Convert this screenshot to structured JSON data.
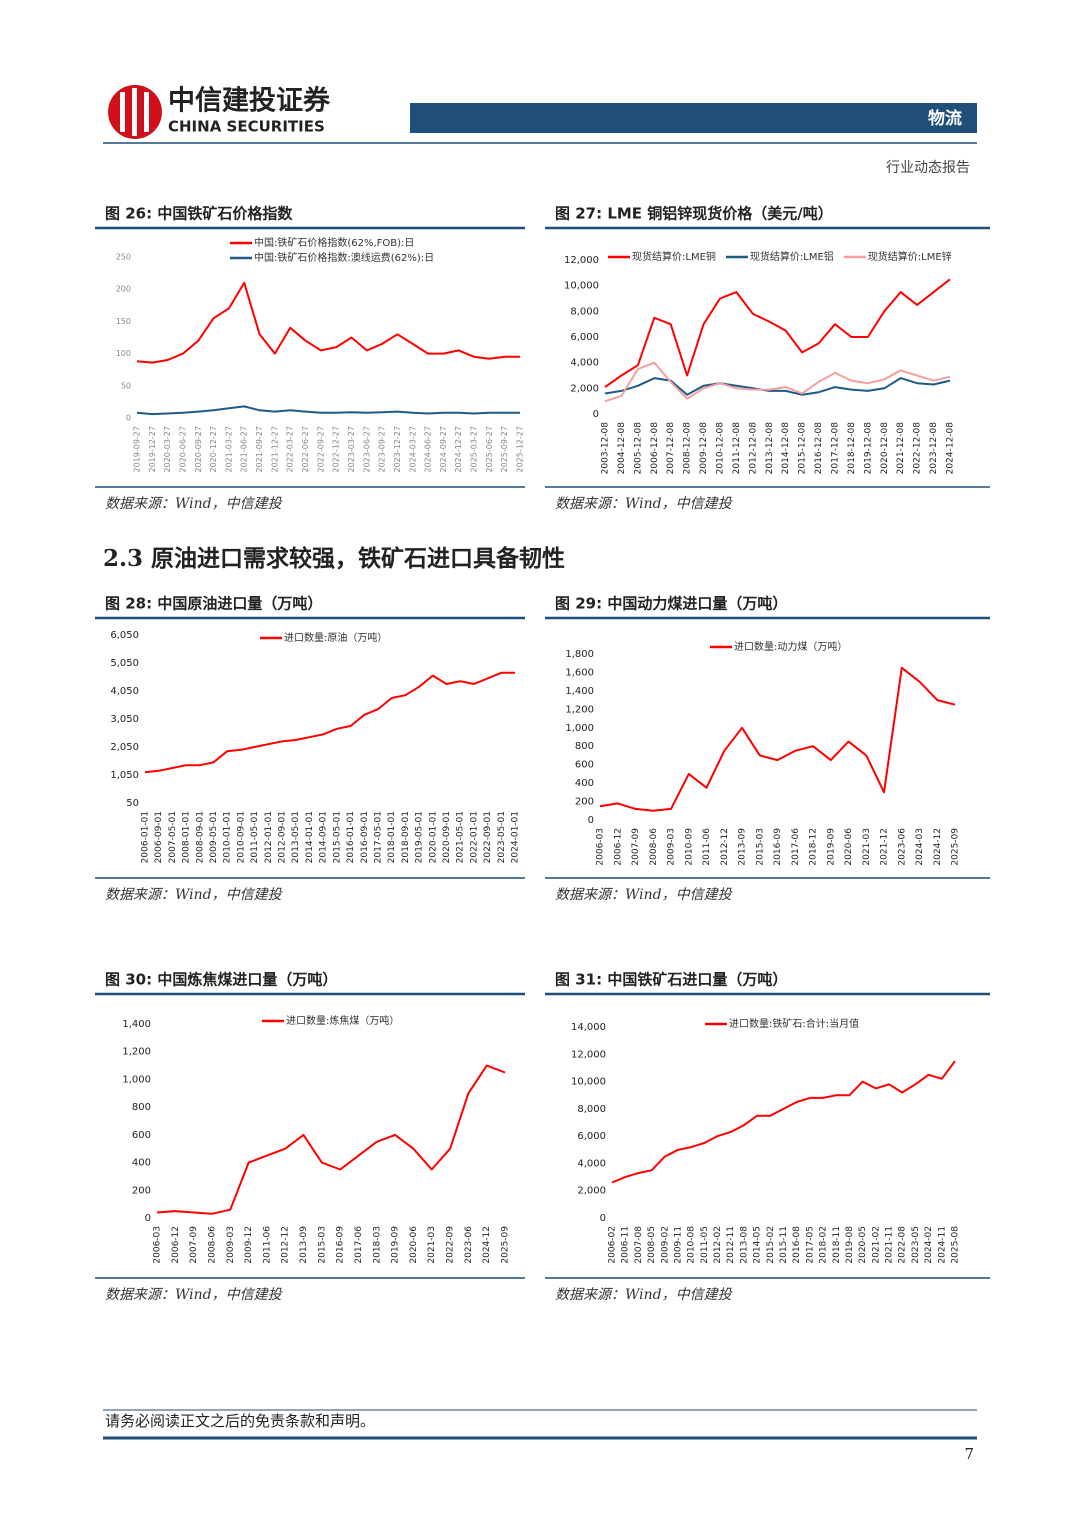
{
  "header": {
    "company": "中信建投证券",
    "company_en": "CHINA SECURITIES",
    "sector": "物流",
    "report_type": "行业动态报告"
  },
  "section_title": "2.3 原油进口需求较强，铁矿石进口具备韧性",
  "chart_data": [
    {
      "type": "line",
      "title": "图 26: 中国铁矿石价格指数",
      "source": "数据来源：Wind，中信建投",
      "categories": [
        "2019-09-27",
        "2019-12-27",
        "2020-03-27",
        "2020-06-27",
        "2020-09-27",
        "2020-12-27",
        "2021-03-27",
        "2021-06-27",
        "2021-09-27",
        "2021-12-27",
        "2022-03-27",
        "2022-06-27",
        "2022-09-27",
        "2022-12-27",
        "2023-03-27",
        "2023-06-27",
        "2023-09-27",
        "2023-12-27",
        "2024-03-27",
        "2024-06-27",
        "2024-09-27",
        "2024-12-27",
        "2025-03-27",
        "2025-06-27",
        "2025-09-27",
        "2025-12-27"
      ],
      "series": [
        {
          "name": "中国:铁矿石价格指数(62%,FOB):日",
          "color": "#ff0000",
          "values": [
            88,
            86,
            90,
            100,
            120,
            155,
            170,
            210,
            130,
            100,
            140,
            120,
            105,
            110,
            125,
            105,
            115,
            130,
            115,
            100,
            100,
            105,
            95,
            92,
            95,
            95
          ]
        },
        {
          "name": "中国:铁矿石价格指数:澳线运费(62%):日",
          "color": "#1f5a85",
          "values": [
            8,
            6,
            7,
            8,
            10,
            12,
            15,
            18,
            12,
            10,
            12,
            10,
            8,
            8,
            9,
            8,
            9,
            10,
            8,
            7,
            8,
            8,
            7,
            8,
            8,
            8
          ]
        }
      ],
      "ylim": [
        0,
        250
      ],
      "yticks": [
        0,
        50,
        100,
        150,
        200,
        250
      ]
    },
    {
      "type": "line",
      "title": "图 27: LME 铜铝锌现货价格（美元/吨）",
      "source": "数据来源：Wind，中信建投",
      "categories": [
        "2003-12-08",
        "2004-12-08",
        "2005-12-08",
        "2006-12-08",
        "2007-12-08",
        "2008-12-08",
        "2009-12-08",
        "2010-12-08",
        "2011-12-08",
        "2012-12-08",
        "2013-12-08",
        "2014-12-08",
        "2015-12-08",
        "2016-12-08",
        "2017-12-08",
        "2018-12-08",
        "2019-12-08",
        "2020-12-08",
        "2021-12-08",
        "2022-12-08",
        "2023-12-08",
        "2024-12-08"
      ],
      "series": [
        {
          "name": "现货结算价:LME铜",
          "color": "#ff0000",
          "values": [
            2100,
            3000,
            3800,
            7500,
            7000,
            3000,
            7000,
            9000,
            9500,
            7800,
            7200,
            6500,
            4800,
            5500,
            7000,
            6000,
            6000,
            8000,
            9500,
            8500,
            9500,
            10500
          ]
        },
        {
          "name": "现货结算价:LME铝",
          "color": "#1f5a85",
          "values": [
            1600,
            1800,
            2200,
            2800,
            2600,
            1500,
            2200,
            2400,
            2200,
            2000,
            1800,
            1800,
            1500,
            1700,
            2100,
            1900,
            1800,
            2000,
            2800,
            2400,
            2300,
            2600
          ]
        },
        {
          "name": "现货结算价:LME锌",
          "color": "#f4a0a0",
          "values": [
            1000,
            1400,
            3500,
            4000,
            2500,
            1200,
            2000,
            2400,
            2000,
            1900,
            1900,
            2100,
            1600,
            2500,
            3200,
            2600,
            2400,
            2700,
            3400,
            3000,
            2600,
            2900
          ]
        }
      ],
      "ylim": [
        0,
        12000
      ],
      "yticks": [
        0,
        {
          "value": 2000,
          "label": "2,000"
        },
        {
          "value": 4000,
          "label": "4,000"
        },
        {
          "value": 6000,
          "label": "6,000"
        },
        {
          "value": 8000,
          "label": "8,000"
        },
        {
          "value": 10000,
          "label": "10,000"
        },
        {
          "value": 12000,
          "label": "12,000"
        }
      ]
    },
    {
      "type": "line",
      "title": "图 28: 中国原油进口量（万吨）",
      "source": "数据来源：Wind，中信建投",
      "categories": [
        "2006-01-01",
        "2006-09-01",
        "2007-05-01",
        "2008-01-01",
        "2008-09-01",
        "2009-05-01",
        "2010-01-01",
        "2010-09-01",
        "2011-05-01",
        "2012-01-01",
        "2012-09-01",
        "2013-05-01",
        "2014-01-01",
        "2014-09-01",
        "2015-05-01",
        "2016-01-01",
        "2016-09-01",
        "2017-05-01",
        "2018-01-01",
        "2018-09-01",
        "2019-05-01",
        "2020-01-01",
        "2020-09-01",
        "2021-05-01",
        "2022-01-01",
        "2022-09-01",
        "2023-05-01",
        "2024-01-01"
      ],
      "series": [
        {
          "name": "进口数量:原油（万吨）",
          "color": "#ff0000",
          "values": [
            1150,
            1200,
            1300,
            1400,
            1400,
            1500,
            1900,
            1950,
            2050,
            2150,
            2250,
            2300,
            2400,
            2500,
            2700,
            2800,
            3200,
            3400,
            3800,
            3900,
            4200,
            4600,
            4300,
            4400,
            4300,
            4500,
            4700,
            4700
          ]
        }
      ],
      "ylim": [
        50,
        6050
      ],
      "yticks": [
        50,
        {
          "value": 1050,
          "label": "1,050"
        },
        {
          "value": 2050,
          "label": "2,050"
        },
        {
          "value": 3050,
          "label": "3,050"
        },
        {
          "value": 4050,
          "label": "4,050"
        },
        {
          "value": 5050,
          "label": "5,050"
        },
        {
          "value": 6050,
          "label": "6,050"
        }
      ]
    },
    {
      "type": "line",
      "title": "图 29: 中国动力煤进口量（万吨）",
      "source": "数据来源：Wind，中信建投",
      "categories": [
        "2006-03",
        "2006-12",
        "2007-09",
        "2008-06",
        "2009-03",
        "2010-09",
        "2011-06",
        "2012-12",
        "2013-09",
        "2015-03",
        "2016-09",
        "2017-06",
        "2018-12",
        "2019-09",
        "2020-06",
        "2021-03",
        "2021-12",
        "2023-06",
        "2024-03",
        "2024-12",
        "2025-09"
      ],
      "series": [
        {
          "name": "进口数量:动力煤（万吨）",
          "color": "#ff0000",
          "values": [
            150,
            180,
            120,
            100,
            120,
            500,
            350,
            750,
            1000,
            700,
            650,
            750,
            800,
            650,
            850,
            700,
            300,
            1650,
            1500,
            1300,
            1250
          ]
        }
      ],
      "ylim": [
        0,
        1800
      ],
      "yticks": [
        0,
        200,
        400,
        600,
        800,
        {
          "value": 1000,
          "label": "1,000"
        },
        {
          "value": 1200,
          "label": "1,200"
        },
        {
          "value": 1400,
          "label": "1,400"
        },
        {
          "value": 1600,
          "label": "1,600"
        },
        {
          "value": 1800,
          "label": "1,800"
        }
      ]
    },
    {
      "type": "line",
      "title": "图 30: 中国炼焦煤进口量（万吨）",
      "source": "数据来源：Wind，中信建投",
      "categories": [
        "2006-03",
        "2006-12",
        "2007-09",
        "2008-06",
        "2009-03",
        "2009-12",
        "2011-06",
        "2012-12",
        "2013-09",
        "2015-03",
        "2016-09",
        "2017-06",
        "2018-03",
        "2019-09",
        "2020-06",
        "2021-03",
        "2022-09",
        "2023-06",
        "2024-12",
        "2025-09"
      ],
      "series": [
        {
          "name": "进口数量:炼焦煤（万吨）",
          "color": "#ff0000",
          "values": [
            40,
            50,
            40,
            30,
            60,
            400,
            450,
            500,
            600,
            400,
            350,
            450,
            550,
            600,
            500,
            350,
            500,
            900,
            1100,
            1050
          ]
        }
      ],
      "ylim": [
        0,
        1400
      ],
      "yticks": [
        0,
        200,
        400,
        600,
        800,
        {
          "value": 1000,
          "label": "1,000"
        },
        {
          "value": 1200,
          "label": "1,200"
        },
        {
          "value": 1400,
          "label": "1,400"
        }
      ]
    },
    {
      "type": "line",
      "title": "图 31: 中国铁矿石进口量（万吨）",
      "source": "数据来源：Wind，中信建投",
      "categories": [
        "2006-02",
        "2006-11",
        "2007-08",
        "2008-05",
        "2009-02",
        "2009-11",
        "2010-08",
        "2011-05",
        "2012-02",
        "2012-11",
        "2013-08",
        "2014-05",
        "2015-02",
        "2015-11",
        "2016-08",
        "2017-05",
        "2018-02",
        "2018-11",
        "2019-08",
        "2020-05",
        "2021-02",
        "2021-11",
        "2022-08",
        "2023-05",
        "2024-02",
        "2024-11",
        "2025-08"
      ],
      "series": [
        {
          "name": "进口数量:铁矿石:合计:当月值",
          "color": "#ff0000",
          "values": [
            2600,
            3000,
            3300,
            3500,
            4500,
            5000,
            5200,
            5500,
            6000,
            6300,
            6800,
            7500,
            7500,
            8000,
            8500,
            8800,
            8800,
            9000,
            9000,
            10000,
            9500,
            9800,
            9200,
            9800,
            10500,
            10200,
            11500
          ]
        }
      ],
      "ylim": [
        0,
        14000
      ],
      "yticks": [
        0,
        {
          "value": 2000,
          "label": "2,000"
        },
        {
          "value": 4000,
          "label": "4,000"
        },
        {
          "value": 6000,
          "label": "6,000"
        },
        {
          "value": 8000,
          "label": "8,000"
        },
        {
          "value": 10000,
          "label": "10,000"
        },
        {
          "value": 12000,
          "label": "12,000"
        },
        {
          "value": 14000,
          "label": "14,000"
        }
      ]
    }
  ],
  "footer": {
    "disclaimer": "请务必阅读正文之后的免责条款和声明。",
    "page_number": "7"
  }
}
